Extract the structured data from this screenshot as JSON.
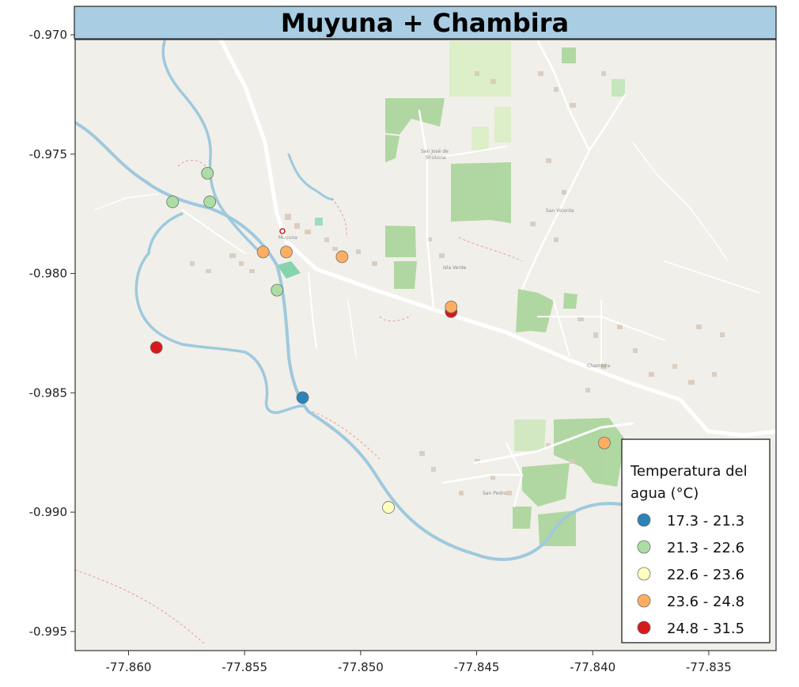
{
  "chart_data": {
    "type": "scatter",
    "title": "Muyuna + Chambira",
    "xlabel": "",
    "ylabel": "",
    "xlim": [
      -77.8623,
      -77.8321
    ],
    "ylim": [
      -0.9958,
      -0.9702
    ],
    "x_ticks": [
      {
        "value": -77.86,
        "label": "-77.860"
      },
      {
        "value": -77.855,
        "label": "-77.855"
      },
      {
        "value": -77.85,
        "label": "-77.850"
      },
      {
        "value": -77.845,
        "label": "-77.845"
      },
      {
        "value": -77.84,
        "label": "-77.840"
      },
      {
        "value": -77.835,
        "label": "-77.835"
      }
    ],
    "y_ticks": [
      {
        "value": -0.97,
        "label": "-0.970"
      },
      {
        "value": -0.975,
        "label": "-0.975"
      },
      {
        "value": -0.98,
        "label": "-0.980"
      },
      {
        "value": -0.985,
        "label": "-0.985"
      },
      {
        "value": -0.99,
        "label": "-0.990"
      },
      {
        "value": -0.995,
        "label": "-0.995"
      }
    ],
    "legend": {
      "title_lines": [
        "Temperatura del",
        "agua (°C)"
      ],
      "placement": "bottom-right",
      "classes": [
        {
          "label": "17.3 - 21.3",
          "color": "#2b83ba"
        },
        {
          "label": "21.3 - 22.6",
          "color": "#abdda4"
        },
        {
          "label": "22.6 - 23.6",
          "color": "#ffffbf"
        },
        {
          "label": "23.6 - 24.8",
          "color": "#fdae61"
        },
        {
          "label": "24.8 - 31.5",
          "color": "#d7191c"
        }
      ]
    },
    "points": [
      {
        "lon": -77.8581,
        "lat": -0.977,
        "class": 1
      },
      {
        "lon": -77.8566,
        "lat": -0.9758,
        "class": 1
      },
      {
        "lon": -77.8565,
        "lat": -0.977,
        "class": 1
      },
      {
        "lon": -77.8542,
        "lat": -0.9791,
        "class": 3
      },
      {
        "lon": -77.8532,
        "lat": -0.9791,
        "class": 3
      },
      {
        "lon": -77.8508,
        "lat": -0.9793,
        "class": 3
      },
      {
        "lon": -77.8536,
        "lat": -0.9807,
        "class": 1
      },
      {
        "lon": -77.8588,
        "lat": -0.9831,
        "class": 4
      },
      {
        "lon": -77.8525,
        "lat": -0.9852,
        "class": 0
      },
      {
        "lon": -77.8461,
        "lat": -0.9816,
        "class": 4
      },
      {
        "lon": -77.8461,
        "lat": -0.9814,
        "class": 3
      },
      {
        "lon": -77.8488,
        "lat": -0.9898,
        "class": 2
      },
      {
        "lon": -77.8395,
        "lat": -0.9871,
        "class": 3
      }
    ],
    "background": "basemap"
  }
}
